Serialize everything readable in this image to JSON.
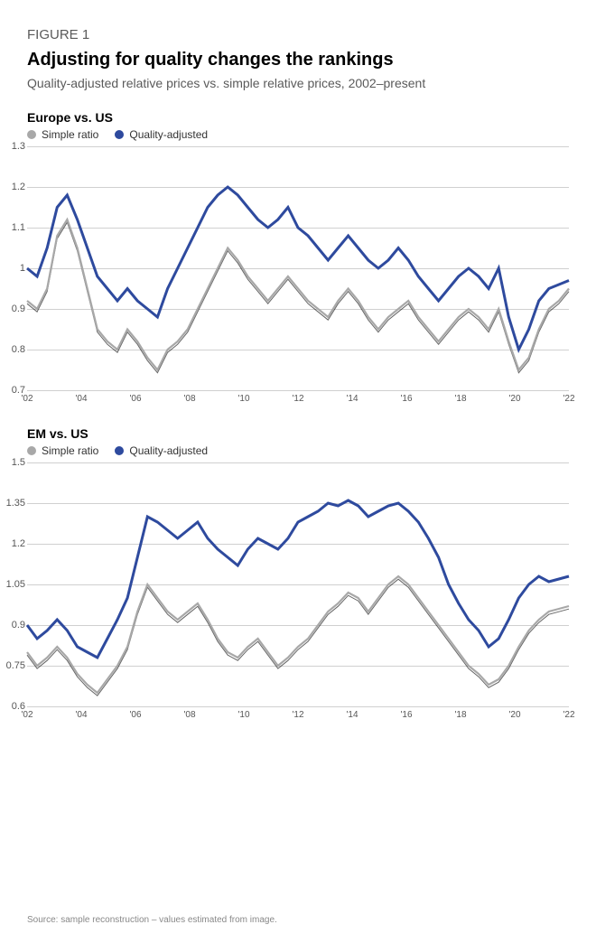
{
  "figure": {
    "label": "FIGURE 1",
    "title": "Adjusting for quality changes the rankings",
    "subtitle": "Quality-adjusted relative prices vs. simple relative prices, 2002–present"
  },
  "legend": {
    "items": [
      {
        "label": "Simple ratio",
        "color": "#a8a8a8"
      },
      {
        "label": "Quality-adjusted",
        "color": "#2e4a9e"
      }
    ]
  },
  "panels": [
    {
      "title": "Europe vs. US",
      "ylim": [
        0.7,
        1.3
      ],
      "yticks": [
        0.7,
        0.8,
        0.9,
        1.0,
        1.1,
        1.2,
        1.3
      ],
      "xlabels": [
        "'02",
        "'04",
        "'06",
        "'08",
        "'10",
        "'12",
        "'14",
        "'16",
        "'18",
        "'20",
        "'22"
      ],
      "line_colors": {
        "a": "#a8a8a8",
        "b": "#2e4a9e",
        "a_shadow": "#000000"
      },
      "line_widths": {
        "a": 2.2,
        "b": 3.0,
        "a_shadow": 1.0
      },
      "grid_color": "#d0d0d0",
      "background": "#ffffff",
      "series_a": [
        0.92,
        0.9,
        0.95,
        1.08,
        1.12,
        1.05,
        0.95,
        0.85,
        0.82,
        0.8,
        0.85,
        0.82,
        0.78,
        0.75,
        0.8,
        0.82,
        0.85,
        0.9,
        0.95,
        1.0,
        1.05,
        1.02,
        0.98,
        0.95,
        0.92,
        0.95,
        0.98,
        0.95,
        0.92,
        0.9,
        0.88,
        0.92,
        0.95,
        0.92,
        0.88,
        0.85,
        0.88,
        0.9,
        0.92,
        0.88,
        0.85,
        0.82,
        0.85,
        0.88,
        0.9,
        0.88,
        0.85,
        0.9,
        0.82,
        0.75,
        0.78,
        0.85,
        0.9,
        0.92,
        0.95
      ],
      "series_b": [
        1.0,
        0.98,
        1.05,
        1.15,
        1.18,
        1.12,
        1.05,
        0.98,
        0.95,
        0.92,
        0.95,
        0.92,
        0.9,
        0.88,
        0.95,
        1.0,
        1.05,
        1.1,
        1.15,
        1.18,
        1.2,
        1.18,
        1.15,
        1.12,
        1.1,
        1.12,
        1.15,
        1.1,
        1.08,
        1.05,
        1.02,
        1.05,
        1.08,
        1.05,
        1.02,
        1.0,
        1.02,
        1.05,
        1.02,
        0.98,
        0.95,
        0.92,
        0.95,
        0.98,
        1.0,
        0.98,
        0.95,
        1.0,
        0.88,
        0.8,
        0.85,
        0.92,
        0.95,
        0.96,
        0.97
      ]
    },
    {
      "title": "EM vs. US",
      "ylim": [
        0.6,
        1.5
      ],
      "yticks": [
        0.6,
        0.75,
        0.9,
        1.05,
        1.2,
        1.35,
        1.5
      ],
      "xlabels": [
        "'02",
        "'04",
        "'06",
        "'08",
        "'10",
        "'12",
        "'14",
        "'16",
        "'18",
        "'20",
        "'22"
      ],
      "line_colors": {
        "a": "#a8a8a8",
        "b": "#2e4a9e",
        "a_shadow": "#000000"
      },
      "line_widths": {
        "a": 2.2,
        "b": 3.0,
        "a_shadow": 1.0
      },
      "grid_color": "#d0d0d0",
      "background": "#ffffff",
      "series_a": [
        0.8,
        0.75,
        0.78,
        0.82,
        0.78,
        0.72,
        0.68,
        0.65,
        0.7,
        0.75,
        0.82,
        0.95,
        1.05,
        1.0,
        0.95,
        0.92,
        0.95,
        0.98,
        0.92,
        0.85,
        0.8,
        0.78,
        0.82,
        0.85,
        0.8,
        0.75,
        0.78,
        0.82,
        0.85,
        0.9,
        0.95,
        0.98,
        1.02,
        1.0,
        0.95,
        1.0,
        1.05,
        1.08,
        1.05,
        1.0,
        0.95,
        0.9,
        0.85,
        0.8,
        0.75,
        0.72,
        0.68,
        0.7,
        0.75,
        0.82,
        0.88,
        0.92,
        0.95,
        0.96,
        0.97
      ],
      "series_b": [
        0.9,
        0.85,
        0.88,
        0.92,
        0.88,
        0.82,
        0.8,
        0.78,
        0.85,
        0.92,
        1.0,
        1.15,
        1.3,
        1.28,
        1.25,
        1.22,
        1.25,
        1.28,
        1.22,
        1.18,
        1.15,
        1.12,
        1.18,
        1.22,
        1.2,
        1.18,
        1.22,
        1.28,
        1.3,
        1.32,
        1.35,
        1.34,
        1.36,
        1.34,
        1.3,
        1.32,
        1.34,
        1.35,
        1.32,
        1.28,
        1.22,
        1.15,
        1.05,
        0.98,
        0.92,
        0.88,
        0.82,
        0.85,
        0.92,
        1.0,
        1.05,
        1.08,
        1.06,
        1.07,
        1.08
      ]
    }
  ],
  "footer": "Source: sample reconstruction – values estimated from image."
}
